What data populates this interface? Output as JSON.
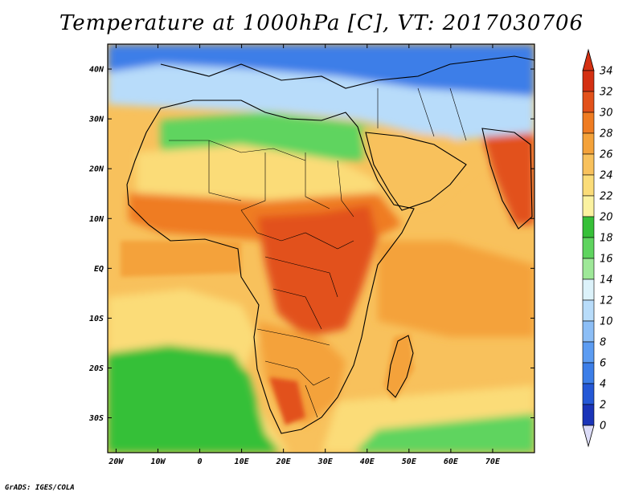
{
  "title": "Temperature at 1000hPa [C], VT: 2017030706",
  "credit": "GrADS: IGES/COLA",
  "map": {
    "lon_range": [
      -22,
      80
    ],
    "lat_range": [
      -37,
      45
    ],
    "lat_ticks": [
      {
        "lat": 40,
        "label": "40N"
      },
      {
        "lat": 30,
        "label": "30N"
      },
      {
        "lat": 20,
        "label": "20N"
      },
      {
        "lat": 10,
        "label": "10N"
      },
      {
        "lat": 0,
        "label": "EQ"
      },
      {
        "lat": -10,
        "label": "10S"
      },
      {
        "lat": -20,
        "label": "20S"
      },
      {
        "lat": -30,
        "label": "30S"
      }
    ],
    "lon_ticks": [
      {
        "lon": -20,
        "label": "20W"
      },
      {
        "lon": -10,
        "label": "10W"
      },
      {
        "lon": 0,
        "label": "0"
      },
      {
        "lon": 10,
        "label": "10E"
      },
      {
        "lon": 20,
        "label": "20E"
      },
      {
        "lon": 30,
        "label": "30E"
      },
      {
        "lon": 40,
        "label": "40E"
      },
      {
        "lon": 50,
        "label": "50E"
      },
      {
        "lon": 60,
        "label": "60E"
      },
      {
        "lon": 70,
        "label": "70E"
      }
    ]
  },
  "colorbar": {
    "levels": [
      "0",
      "2",
      "4",
      "6",
      "8",
      "10",
      "12",
      "14",
      "16",
      "18",
      "20",
      "22",
      "24",
      "26",
      "28",
      "30",
      "32",
      "34"
    ],
    "colors": [
      "#0c1470",
      "#1a34b8",
      "#2458d6",
      "#3c7ee8",
      "#5c9cf2",
      "#8cbef6",
      "#b8dcfa",
      "#dcf2fa",
      "#9ee898",
      "#5fd45f",
      "#36c038",
      "#fbf2a0",
      "#fbdc78",
      "#f8c15c",
      "#f4a23a",
      "#ef7c22",
      "#e2511a",
      "#d43012"
    ]
  },
  "colors": {
    "ocean_warm": "#f8c15c",
    "ocean_hot": "#f4a23a",
    "ocean_cool": "#fbdc78",
    "ocean_cold": "#36c038",
    "north_cold": "#3c7ee8",
    "sahara": "#fbdc78",
    "sahel_hot": "#ef7c22",
    "core_hot": "#e2511a",
    "green_band": "#5fd45f"
  }
}
